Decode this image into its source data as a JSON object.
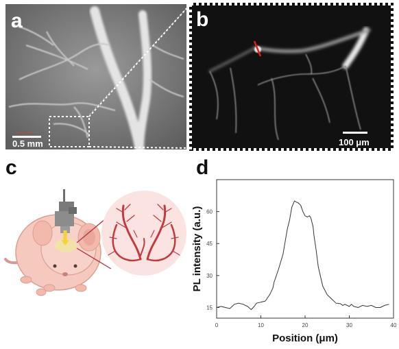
{
  "panels": {
    "a": {
      "label": "a",
      "scale_label": "0.5 mm"
    },
    "b": {
      "label": "b",
      "scale_label": "100 μm"
    },
    "c": {
      "label": "c"
    },
    "d": {
      "label": "d"
    }
  },
  "chart_data": {
    "type": "line",
    "xlabel": "Position (μm)",
    "ylabel": "PL intensity (a.u.)",
    "xlim": [
      0,
      40
    ],
    "ylim": [
      10,
      75
    ],
    "xticks": [
      0,
      10,
      20,
      30,
      40
    ],
    "yticks": [
      15,
      30,
      45,
      60
    ],
    "grid": false,
    "series": [
      {
        "x": [
          0,
          1,
          2,
          3,
          4,
          5,
          6,
          7,
          7.8,
          8.5,
          9,
          10,
          11,
          12,
          12.7,
          13,
          14,
          15,
          16,
          16.5,
          17,
          17.6,
          18,
          18.5,
          19,
          19.5,
          20,
          20.5,
          21,
          21.3,
          21.8,
          22,
          22.5,
          23,
          24,
          25,
          26,
          27,
          28,
          28.5,
          29,
          30,
          30.5,
          31,
          32,
          33,
          34,
          35,
          36,
          37,
          38,
          39
        ],
        "y": [
          15,
          15.5,
          15,
          14.5,
          16.5,
          17,
          16.5,
          15.5,
          14,
          15.5,
          17,
          17.5,
          18,
          21,
          24,
          27,
          33,
          40,
          52,
          56,
          62,
          65,
          64.5,
          64,
          63,
          60,
          58,
          57.5,
          58,
          57,
          53,
          49,
          42,
          34,
          25,
          21,
          19,
          17,
          16.8,
          16,
          16.5,
          15.5,
          16.5,
          15.5,
          15,
          16,
          15.5,
          16,
          15,
          15,
          16,
          16.5
        ]
      }
    ]
  }
}
